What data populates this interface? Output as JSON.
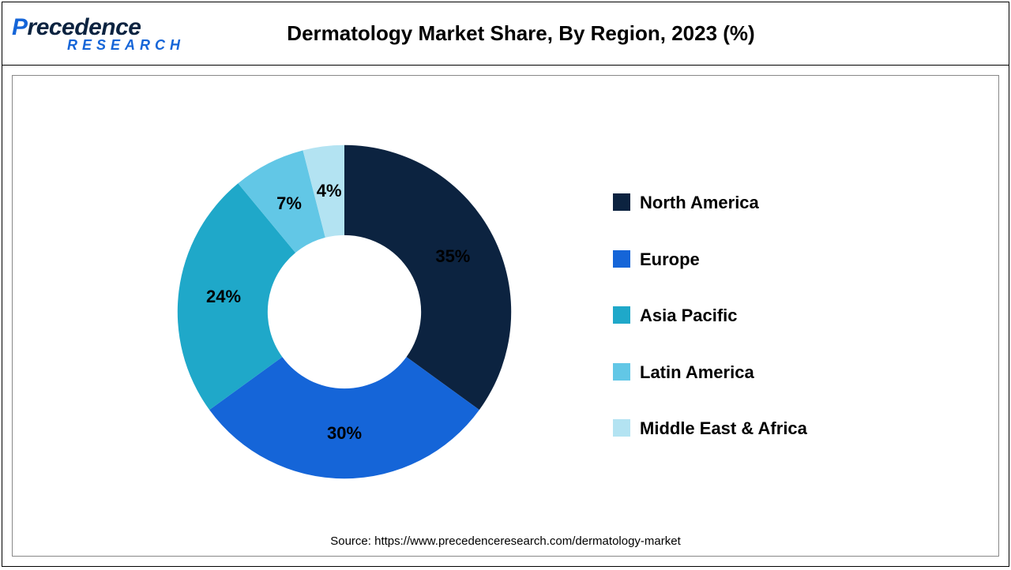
{
  "logo": {
    "main_prefix": "P",
    "main_rest": "recedence",
    "sub": "RESEARCH"
  },
  "title": "Dermatology Market Share, By Region, 2023 (%)",
  "chart": {
    "type": "donut",
    "inner_radius_ratio": 0.46,
    "start_angle_deg": 0,
    "label_fontsize": 22,
    "legend_fontsize": 22,
    "background_color": "#ffffff",
    "slices": [
      {
        "label": "North America",
        "value": 35,
        "color": "#0c2340",
        "pct_text": "35%"
      },
      {
        "label": "Europe",
        "value": 30,
        "color": "#1565d8",
        "pct_text": "30%"
      },
      {
        "label": "Asia Pacific",
        "value": 24,
        "color": "#1fa8c9",
        "pct_text": "24%"
      },
      {
        "label": "Latin America",
        "value": 7,
        "color": "#62c7e6",
        "pct_text": "7%"
      },
      {
        "label": "Middle East & Africa",
        "value": 4,
        "color": "#b3e3f2",
        "pct_text": "4%"
      }
    ]
  },
  "source": "Source: https://www.precedenceresearch.com/dermatology-market"
}
